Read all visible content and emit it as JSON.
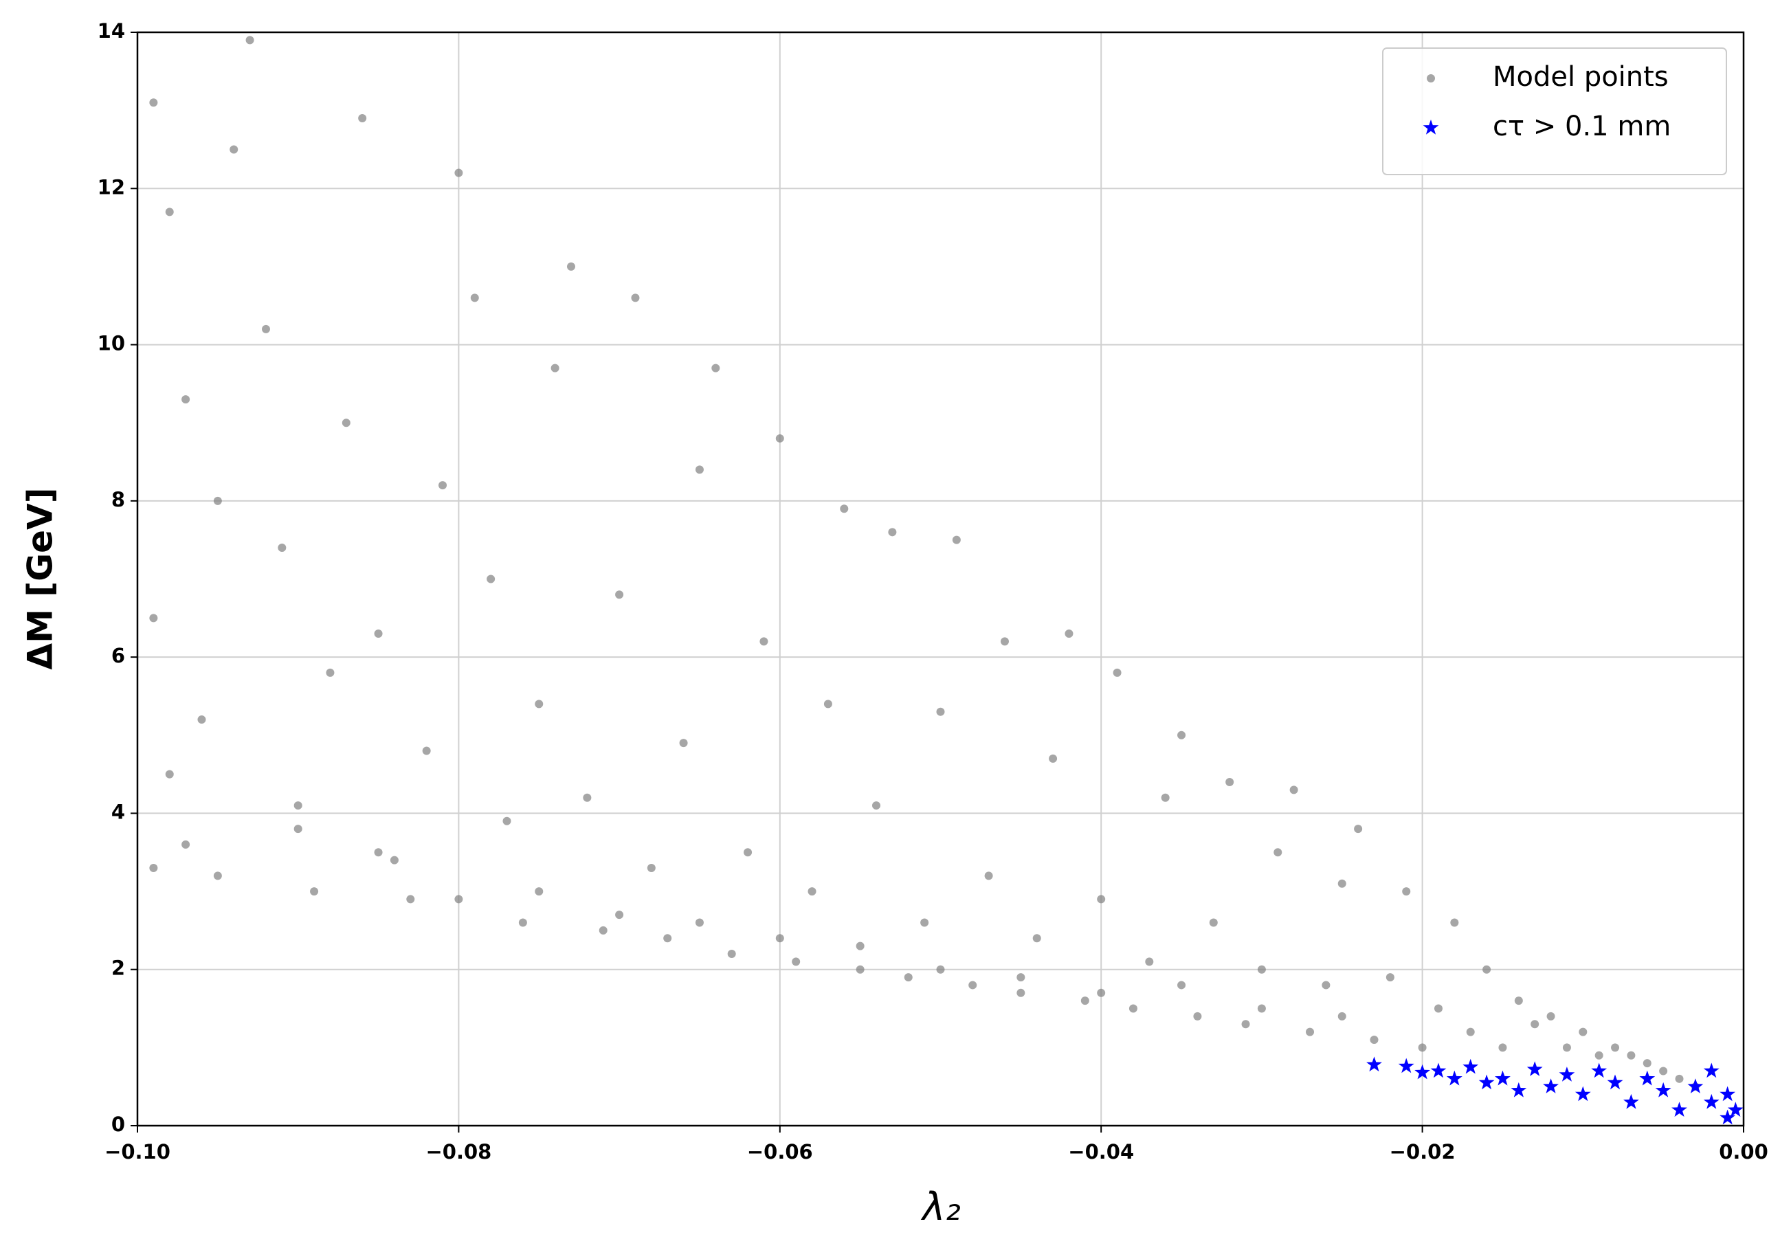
{
  "chart_data": {
    "type": "scatter",
    "xlabel": "λ₂",
    "ylabel": "ΔM [GeV]",
    "xlim": [
      -0.1,
      0
    ],
    "ylim": [
      0,
      14
    ],
    "xticks": [
      {
        "value": -0.1,
        "label": "−0.10"
      },
      {
        "value": -0.08,
        "label": "−0.08"
      },
      {
        "value": -0.06,
        "label": "−0.06"
      },
      {
        "value": -0.04,
        "label": "−0.04"
      },
      {
        "value": -0.02,
        "label": "−0.02"
      },
      {
        "value": 0,
        "label": "0.00"
      }
    ],
    "yticks": [
      0,
      2,
      4,
      6,
      8,
      10,
      12,
      14
    ],
    "grid": true,
    "legend": "upper right",
    "series": [
      {
        "name": "Model points",
        "color": "#808080",
        "marker": "circle",
        "x": [
          -0.099,
          -0.098,
          -0.097,
          -0.099,
          -0.098,
          -0.099,
          -0.097,
          -0.096,
          -0.095,
          -0.094,
          -0.093,
          -0.092,
          -0.091,
          -0.09,
          -0.089,
          -0.088,
          -0.087,
          -0.086,
          -0.085,
          -0.084,
          -0.083,
          -0.082,
          -0.081,
          -0.08,
          -0.079,
          -0.078,
          -0.077,
          -0.076,
          -0.075,
          -0.074,
          -0.073,
          -0.072,
          -0.071,
          -0.07,
          -0.069,
          -0.068,
          -0.067,
          -0.066,
          -0.065,
          -0.064,
          -0.063,
          -0.062,
          -0.061,
          -0.06,
          -0.059,
          -0.058,
          -0.057,
          -0.056,
          -0.055,
          -0.054,
          -0.053,
          -0.052,
          -0.051,
          -0.05,
          -0.049,
          -0.048,
          -0.047,
          -0.046,
          -0.045,
          -0.044,
          -0.043,
          -0.042,
          -0.041,
          -0.04,
          -0.039,
          -0.038,
          -0.037,
          -0.036,
          -0.035,
          -0.034,
          -0.033,
          -0.032,
          -0.031,
          -0.03,
          -0.029,
          -0.028,
          -0.027,
          -0.026,
          -0.025,
          -0.024,
          -0.023,
          -0.022,
          -0.021,
          -0.02,
          -0.019,
          -0.018,
          -0.017,
          -0.016,
          -0.015,
          -0.014,
          -0.013,
          -0.012,
          -0.011,
          -0.01,
          -0.009,
          -0.008,
          -0.007,
          -0.006,
          -0.005,
          -0.004,
          -0.003,
          -0.095,
          -0.09,
          -0.085,
          -0.08,
          -0.075,
          -0.07,
          -0.065,
          -0.06,
          -0.055,
          -0.05,
          -0.045,
          -0.04,
          -0.035,
          -0.03,
          -0.025
        ],
        "values": [
          13.1,
          11.7,
          9.3,
          6.5,
          4.5,
          3.3,
          3.6,
          5.2,
          8.0,
          12.5,
          13.9,
          10.2,
          7.4,
          4.1,
          3.0,
          5.8,
          9.0,
          12.9,
          6.3,
          3.4,
          2.9,
          4.8,
          8.2,
          12.2,
          10.6,
          7.0,
          3.9,
          2.6,
          5.4,
          9.7,
          11.0,
          4.2,
          2.5,
          6.8,
          10.6,
          3.3,
          2.4,
          4.9,
          8.4,
          9.7,
          2.2,
          3.5,
          6.2,
          8.8,
          2.1,
          3.0,
          5.4,
          7.9,
          2.0,
          4.1,
          7.6,
          1.9,
          2.6,
          5.3,
          7.5,
          1.8,
          3.2,
          6.2,
          1.7,
          2.4,
          4.7,
          6.3,
          1.6,
          2.9,
          5.8,
          1.5,
          2.1,
          4.2,
          5.0,
          1.4,
          2.6,
          4.4,
          1.3,
          2.0,
          3.5,
          4.3,
          1.2,
          1.8,
          3.1,
          3.8,
          1.1,
          1.9,
          3.0,
          1.0,
          1.5,
          2.6,
          1.2,
          2.0,
          1.0,
          1.6,
          1.3,
          1.4,
          1.0,
          1.2,
          0.9,
          1.0,
          0.9,
          0.8,
          0.7,
          0.6,
          0.5,
          3.2,
          3.8,
          3.5,
          2.9,
          3.0,
          2.7,
          2.6,
          2.4,
          2.3,
          2.0,
          1.9,
          1.7,
          1.8,
          1.5,
          1.4
        ]
      },
      {
        "name": "cτ > 0.1 mm",
        "color": "#0000ff",
        "marker": "star",
        "x": [
          -0.023,
          -0.021,
          -0.019,
          -0.017,
          -0.015,
          -0.013,
          -0.012,
          -0.011,
          -0.01,
          -0.009,
          -0.008,
          -0.007,
          -0.006,
          -0.005,
          -0.004,
          -0.003,
          -0.002,
          -0.002,
          -0.001,
          -0.001,
          -0.0005,
          -0.014,
          -0.016,
          -0.018,
          -0.02
        ],
        "values": [
          0.78,
          0.76,
          0.7,
          0.75,
          0.6,
          0.72,
          0.5,
          0.65,
          0.4,
          0.7,
          0.55,
          0.3,
          0.6,
          0.45,
          0.2,
          0.5,
          0.3,
          0.7,
          0.1,
          0.4,
          0.2,
          0.45,
          0.55,
          0.6,
          0.68
        ]
      }
    ]
  }
}
